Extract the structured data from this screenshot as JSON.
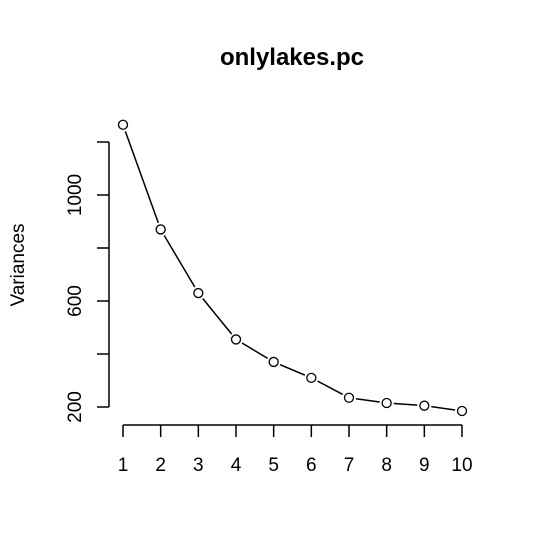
{
  "chart_data": {
    "type": "line",
    "title": "onlylakes.pc",
    "xlabel": "",
    "ylabel": "Variances",
    "x": [
      1,
      2,
      3,
      4,
      5,
      6,
      7,
      8,
      9,
      10
    ],
    "values": [
      1265,
      870,
      630,
      455,
      370,
      310,
      235,
      215,
      205,
      185
    ],
    "xticks": [
      "1",
      "2",
      "3",
      "4",
      "5",
      "6",
      "7",
      "8",
      "9",
      "10"
    ],
    "yticks": [
      200,
      400,
      600,
      800,
      1000,
      1200
    ],
    "ytick_labels": [
      "200",
      "",
      "600",
      "",
      "1000",
      ""
    ],
    "xlim": [
      1,
      10
    ],
    "ylim": [
      200,
      1200
    ],
    "marker": "open-circle",
    "line_style": "solid",
    "color": "#000000",
    "grid": false,
    "legend": "none"
  }
}
